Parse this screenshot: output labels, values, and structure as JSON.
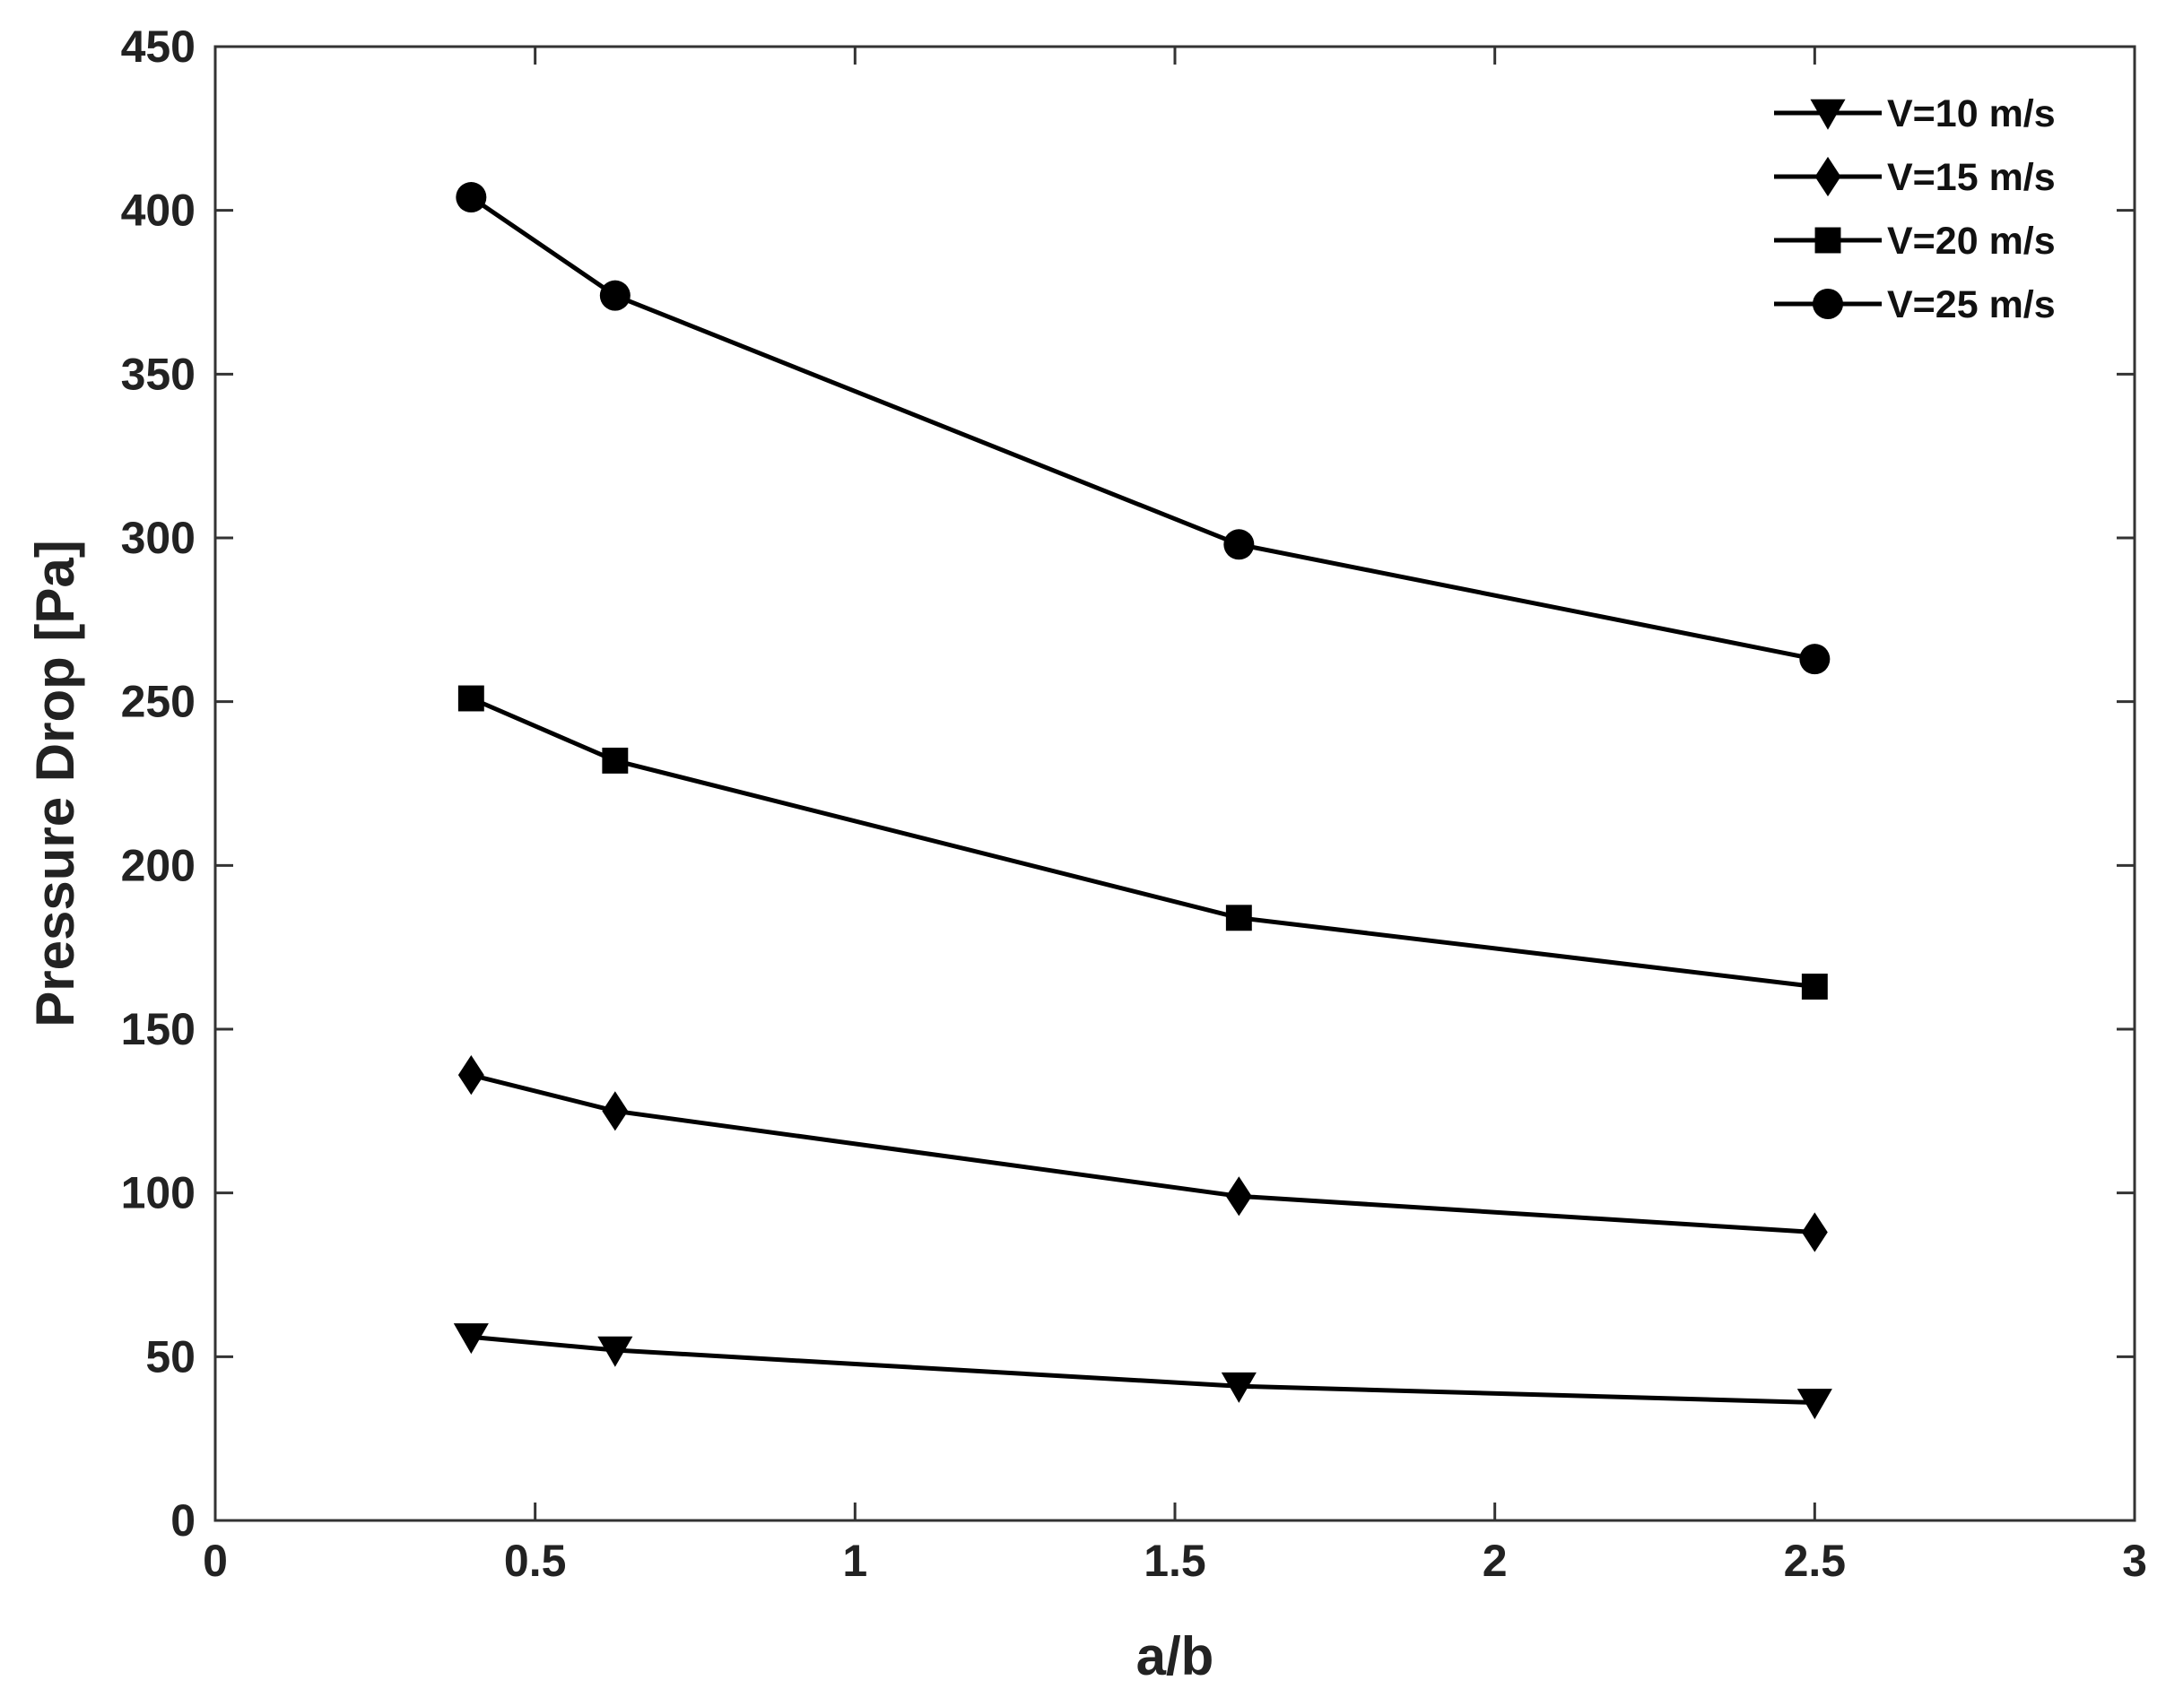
{
  "chart_data": {
    "type": "line",
    "title": "",
    "xlabel": "a/b",
    "ylabel": "Pressure Drop [Pa]",
    "xlim": [
      0,
      3
    ],
    "ylim": [
      0,
      450
    ],
    "xticks": [
      0,
      0.5,
      1,
      1.5,
      2,
      2.5,
      3
    ],
    "yticks": [
      0,
      50,
      100,
      150,
      200,
      250,
      300,
      350,
      400,
      450
    ],
    "xtick_labels": [
      "0",
      "0.5",
      "1",
      "1.5",
      "2",
      "2.5",
      "3"
    ],
    "ytick_labels": [
      "0",
      "50",
      "100",
      "150",
      "200",
      "250",
      "300",
      "350",
      "400",
      "450"
    ],
    "grid": false,
    "legend_position": "top-right",
    "x": [
      0.4,
      0.625,
      1.6,
      2.5
    ],
    "series": [
      {
        "name": "V=10 m/s",
        "marker": "triangle-down",
        "values": [
          56,
          52,
          41,
          36
        ]
      },
      {
        "name": "V=15 m/s",
        "marker": "diamond",
        "values": [
          136,
          125,
          99,
          88
        ]
      },
      {
        "name": "V=20 m/s",
        "marker": "square",
        "values": [
          251,
          232,
          184,
          163
        ]
      },
      {
        "name": "V=25 m/s",
        "marker": "circle",
        "values": [
          404,
          374,
          298,
          263
        ]
      }
    ],
    "colors": {
      "line": "#000000",
      "axes": "#333333",
      "text": "#222222"
    }
  }
}
